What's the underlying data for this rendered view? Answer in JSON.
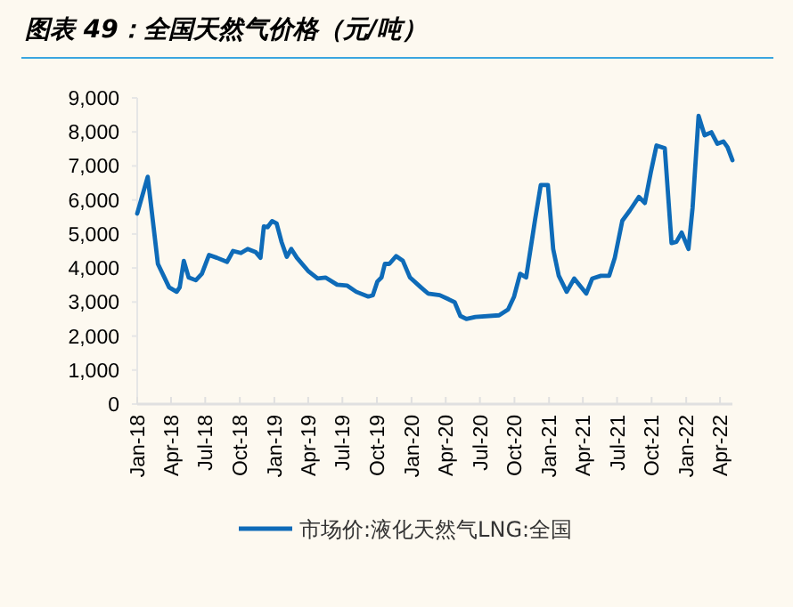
{
  "chart_data": {
    "type": "line",
    "title": "图表 49：全国天然气价格（元/吨）",
    "x": [
      "2018-01-01",
      "2018-01-29",
      "2018-02-25",
      "2018-03-27",
      "2018-04-16",
      "2018-04-24",
      "2018-05-05",
      "2018-05-18",
      "2018-06-06",
      "2018-06-22",
      "2018-07-11",
      "2018-08-01",
      "2018-08-28",
      "2018-09-13",
      "2018-10-04",
      "2018-10-22",
      "2018-11-12",
      "2018-11-25",
      "2018-12-04",
      "2018-12-14",
      "2018-12-26",
      "2019-01-07",
      "2019-01-20",
      "2019-02-03",
      "2019-02-15",
      "2019-03-02",
      "2019-04-02",
      "2019-04-26",
      "2019-05-17",
      "2019-06-17",
      "2019-07-14",
      "2019-08-07",
      "2019-09-08",
      "2019-09-20",
      "2019-10-02",
      "2019-10-13",
      "2019-10-22",
      "2019-11-03",
      "2019-11-21",
      "2019-12-09",
      "2019-12-28",
      "2020-01-26",
      "2020-02-14",
      "2020-03-16",
      "2020-04-09",
      "2020-04-25",
      "2020-05-10",
      "2020-05-26",
      "2020-06-19",
      "2020-08-21",
      "2020-09-14",
      "2020-09-30",
      "2020-10-16",
      "2020-11-01",
      "2020-11-25",
      "2020-12-10",
      "2020-12-29",
      "2021-01-12",
      "2021-01-27",
      "2021-02-17",
      "2021-03-09",
      "2021-04-10",
      "2021-04-26",
      "2021-05-19",
      "2021-06-10",
      "2021-06-25",
      "2021-07-15",
      "2021-08-04",
      "2021-08-28",
      "2021-09-13",
      "2021-09-29",
      "2021-10-14",
      "2021-11-05",
      "2021-11-23",
      "2021-12-06",
      "2021-12-20",
      "2022-01-07",
      "2022-01-18",
      "2022-02-03",
      "2022-02-19",
      "2022-03-09",
      "2022-03-25",
      "2022-04-10",
      "2022-04-21",
      "2022-05-04"
    ],
    "series": [
      {
        "name": "市场价:液化天然气LNG:全国",
        "color": "#0e6bb8",
        "values": [
          5600,
          6680,
          4120,
          3430,
          3300,
          3430,
          4210,
          3720,
          3640,
          3830,
          4380,
          4300,
          4180,
          4500,
          4440,
          4560,
          4470,
          4300,
          5220,
          5200,
          5380,
          5310,
          4770,
          4330,
          4560,
          4300,
          3900,
          3690,
          3720,
          3510,
          3480,
          3300,
          3160,
          3200,
          3600,
          3720,
          4120,
          4120,
          4350,
          4210,
          3720,
          3430,
          3250,
          3200,
          3080,
          2990,
          2590,
          2500,
          2560,
          2610,
          2780,
          3160,
          3830,
          3720,
          5430,
          6440,
          6440,
          4560,
          3770,
          3300,
          3690,
          3250,
          3690,
          3770,
          3770,
          4300,
          5390,
          5690,
          6090,
          5910,
          6820,
          7600,
          7520,
          4730,
          4770,
          5040,
          4560,
          5770,
          8470,
          7900,
          7990,
          7650,
          7720,
          7550,
          7170
        ]
      }
    ],
    "xlim": [
      "2018-01-01",
      "2022-05-04"
    ],
    "xticks": [
      {
        "value": "2018-01-01",
        "label": "Jan-18"
      },
      {
        "value": "2018-04-01",
        "label": "Apr-18"
      },
      {
        "value": "2018-07-01",
        "label": "Jul-18"
      },
      {
        "value": "2018-10-01",
        "label": "Oct-18"
      },
      {
        "value": "2019-01-01",
        "label": "Jan-19"
      },
      {
        "value": "2019-04-01",
        "label": "Apr-19"
      },
      {
        "value": "2019-07-01",
        "label": "Jul-19"
      },
      {
        "value": "2019-10-01",
        "label": "Oct-19"
      },
      {
        "value": "2020-01-01",
        "label": "Jan-20"
      },
      {
        "value": "2020-04-01",
        "label": "Apr-20"
      },
      {
        "value": "2020-07-01",
        "label": "Jul-20"
      },
      {
        "value": "2020-10-01",
        "label": "Oct-20"
      },
      {
        "value": "2021-01-01",
        "label": "Jan-21"
      },
      {
        "value": "2021-04-01",
        "label": "Apr-21"
      },
      {
        "value": "2021-07-01",
        "label": "Jul-21"
      },
      {
        "value": "2021-10-01",
        "label": "Oct-21"
      },
      {
        "value": "2022-01-01",
        "label": "Jan-22"
      },
      {
        "value": "2022-04-01",
        "label": "Apr-22"
      }
    ],
    "ylim": [
      0,
      9000
    ],
    "yticks": [
      {
        "value": 0,
        "label": "0"
      },
      {
        "value": 1000,
        "label": "1,000"
      },
      {
        "value": 2000,
        "label": "2,000"
      },
      {
        "value": 3000,
        "label": "3,000"
      },
      {
        "value": 4000,
        "label": "4,000"
      },
      {
        "value": 5000,
        "label": "5,000"
      },
      {
        "value": 6000,
        "label": "6,000"
      },
      {
        "value": 7000,
        "label": "7,000"
      },
      {
        "value": 8000,
        "label": "8,000"
      },
      {
        "value": 9000,
        "label": "9,000"
      }
    ],
    "grid": false,
    "legend": "bottom",
    "marker": "none",
    "line_style": "solid"
  }
}
